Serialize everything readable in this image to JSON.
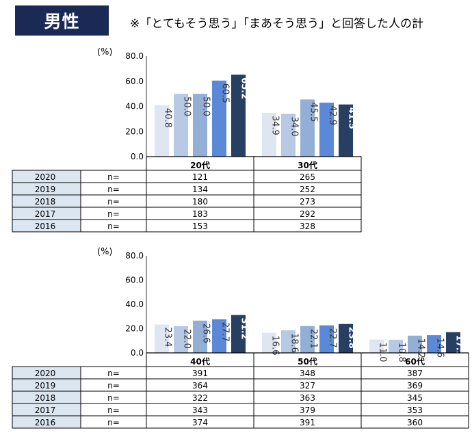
{
  "header": {
    "badge": "男性",
    "note": "※「とてもそう思う」「まあそう思う」と回答した人の計"
  },
  "colors": {
    "badge_bg": "#1b2a55",
    "year_2016": "#dfe6f2",
    "year_2017": "#b7c9e5",
    "year_2018": "#94afd6",
    "year_2019": "#5b89d7",
    "year_2020": "#263f62",
    "row_header_bg": "#dce6f1"
  },
  "chart_data": [
    {
      "type": "bar",
      "unit_label": "(%)",
      "ylim": [
        0,
        80
      ],
      "yticks": [
        "0.0",
        "20.0",
        "40.0",
        "60.0",
        "80.0"
      ],
      "categories": [
        "20代",
        "30代"
      ],
      "series": [
        {
          "name": "2016",
          "values": [
            40.8,
            34.9
          ]
        },
        {
          "name": "2017",
          "values": [
            50.0,
            34.0
          ]
        },
        {
          "name": "2018",
          "values": [
            50.0,
            45.5
          ]
        },
        {
          "name": "2019",
          "values": [
            60.5,
            42.9
          ]
        },
        {
          "name": "2020",
          "values": [
            65.2,
            41.5
          ]
        }
      ],
      "n_label": "n=",
      "n_table": [
        {
          "year": "2020",
          "values": [
            "121",
            "265"
          ]
        },
        {
          "year": "2019",
          "values": [
            "134",
            "252"
          ]
        },
        {
          "year": "2018",
          "values": [
            "180",
            "273"
          ]
        },
        {
          "year": "2017",
          "values": [
            "183",
            "292"
          ]
        },
        {
          "year": "2016",
          "values": [
            "153",
            "328"
          ]
        }
      ]
    },
    {
      "type": "bar",
      "unit_label": "(%)",
      "ylim": [
        0,
        80
      ],
      "yticks": [
        "0.0",
        "20.0",
        "40.0",
        "60.0",
        "80.0"
      ],
      "categories": [
        "40代",
        "50代",
        "60代"
      ],
      "series": [
        {
          "name": "2016",
          "values": [
            23.4,
            16.6,
            11.0
          ]
        },
        {
          "name": "2017",
          "values": [
            22.0,
            18.6,
            10.8
          ]
        },
        {
          "name": "2018",
          "values": [
            26.6,
            22.1,
            14.2
          ]
        },
        {
          "name": "2019",
          "values": [
            27.7,
            22.7,
            14.6
          ]
        },
        {
          "name": "2020",
          "values": [
            31.2,
            23.8,
            17.1
          ]
        }
      ],
      "n_label": "n=",
      "n_table": [
        {
          "year": "2020",
          "values": [
            "391",
            "348",
            "387"
          ]
        },
        {
          "year": "2019",
          "values": [
            "364",
            "327",
            "369"
          ]
        },
        {
          "year": "2018",
          "values": [
            "322",
            "363",
            "345"
          ]
        },
        {
          "year": "2017",
          "values": [
            "343",
            "379",
            "353"
          ]
        },
        {
          "year": "2016",
          "values": [
            "374",
            "391",
            "360"
          ]
        }
      ]
    }
  ]
}
